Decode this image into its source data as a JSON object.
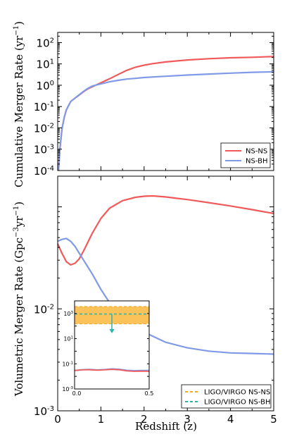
{
  "chart_data": [
    {
      "type": "line",
      "panel": "top",
      "ylabel": "Cumulative Merger Rate (yr",
      "ylabel_sup": "−1",
      "ylabel_end": ")",
      "yscale": "log",
      "ylim": [
        0.0001,
        300
      ],
      "xlim": [
        0,
        5
      ],
      "grid": false,
      "legend_placement": "bottom-right",
      "y_ticks": [
        {
          "v": 0.0001,
          "base": "10",
          "exp": "-4"
        },
        {
          "v": 0.001,
          "base": "10",
          "exp": "-3"
        },
        {
          "v": 0.01,
          "base": "10",
          "exp": "-2"
        },
        {
          "v": 0.1,
          "base": "10",
          "exp": "-1"
        },
        {
          "v": 1,
          "base": "10",
          "exp": "0"
        },
        {
          "v": 10,
          "base": "10",
          "exp": "1"
        },
        {
          "v": 100,
          "base": "10",
          "exp": "2"
        }
      ],
      "series": [
        {
          "name": "NS-NS",
          "color": "#f05a5a",
          "points": [
            [
              0.02,
              0.0001
            ],
            [
              0.05,
              0.001
            ],
            [
              0.1,
              0.009
            ],
            [
              0.15,
              0.03
            ],
            [
              0.2,
              0.07
            ],
            [
              0.3,
              0.17
            ],
            [
              0.4,
              0.25
            ],
            [
              0.5,
              0.35
            ],
            [
              0.6,
              0.5
            ],
            [
              0.7,
              0.68
            ],
            [
              0.8,
              0.85
            ],
            [
              1.0,
              1.3
            ],
            [
              1.2,
              2.0
            ],
            [
              1.4,
              3.2
            ],
            [
              1.6,
              5.0
            ],
            [
              1.8,
              7.0
            ],
            [
              2.0,
              8.7
            ],
            [
              2.2,
              10.3
            ],
            [
              2.5,
              12.4
            ],
            [
              3.0,
              15.3
            ],
            [
              3.5,
              17.6
            ],
            [
              4.0,
              19.4
            ],
            [
              4.5,
              20.5
            ],
            [
              5.0,
              22.3
            ]
          ]
        },
        {
          "name": "NS-BH",
          "color": "#7f9ae6",
          "points": [
            [
              0.02,
              0.0001
            ],
            [
              0.05,
              0.001
            ],
            [
              0.1,
              0.009
            ],
            [
              0.15,
              0.03
            ],
            [
              0.2,
              0.07
            ],
            [
              0.3,
              0.17
            ],
            [
              0.4,
              0.25
            ],
            [
              0.5,
              0.36
            ],
            [
              0.6,
              0.52
            ],
            [
              0.7,
              0.72
            ],
            [
              0.8,
              0.92
            ],
            [
              1.0,
              1.15
            ],
            [
              1.2,
              1.45
            ],
            [
              1.4,
              1.7
            ],
            [
              1.6,
              1.95
            ],
            [
              1.8,
              2.1
            ],
            [
              2.0,
              2.3
            ],
            [
              2.5,
              2.65
            ],
            [
              3.0,
              3.0
            ],
            [
              3.5,
              3.35
            ],
            [
              4.0,
              3.7
            ],
            [
              4.5,
              4.05
            ],
            [
              5.0,
              4.25
            ]
          ]
        }
      ]
    },
    {
      "type": "line",
      "panel": "bottom",
      "xlabel": "Redshift (z)",
      "ylabel": "Volumetric Merger Rate (Gpc",
      "ylabel_sup1": "−3",
      "ylabel_mid": "yr",
      "ylabel_sup2": "−1",
      "ylabel_end": ")",
      "yscale": "log",
      "ylim": [
        0.001,
        0.2
      ],
      "xlim": [
        0,
        5
      ],
      "grid": false,
      "legend_placement": "bottom-right",
      "x_ticks": [
        "0",
        "1",
        "2",
        "3",
        "4",
        "5"
      ],
      "y_ticks": [
        {
          "v": 0.001,
          "base": "10",
          "exp": "-3"
        },
        {
          "v": 0.01,
          "base": "10",
          "exp": "-2"
        }
      ],
      "series": [
        {
          "name": "NS-NS",
          "color": "#f05a5a",
          "points": [
            [
              0.0,
              0.0435
            ],
            [
              0.1,
              0.035
            ],
            [
              0.2,
              0.029
            ],
            [
              0.3,
              0.027
            ],
            [
              0.4,
              0.028
            ],
            [
              0.5,
              0.031
            ],
            [
              0.6,
              0.037
            ],
            [
              0.8,
              0.055
            ],
            [
              1.0,
              0.077
            ],
            [
              1.2,
              0.097
            ],
            [
              1.5,
              0.115
            ],
            [
              1.8,
              0.124
            ],
            [
              2.0,
              0.127
            ],
            [
              2.2,
              0.128
            ],
            [
              2.5,
              0.125
            ],
            [
              3.0,
              0.118
            ],
            [
              3.5,
              0.11
            ],
            [
              4.0,
              0.102
            ],
            [
              4.5,
              0.094
            ],
            [
              5.0,
              0.086
            ]
          ]
        },
        {
          "name": "NS-BH",
          "color": "#7f9ae6",
          "points": [
            [
              0.0,
              0.046
            ],
            [
              0.1,
              0.048
            ],
            [
              0.2,
              0.049
            ],
            [
              0.3,
              0.046
            ],
            [
              0.4,
              0.041
            ],
            [
              0.5,
              0.035
            ],
            [
              0.6,
              0.03
            ],
            [
              0.8,
              0.022
            ],
            [
              1.0,
              0.0155
            ],
            [
              1.2,
              0.0115
            ],
            [
              1.5,
              0.0085
            ],
            [
              1.8,
              0.0067
            ],
            [
              2.0,
              0.0059
            ],
            [
              2.5,
              0.0047
            ],
            [
              3.0,
              0.00415
            ],
            [
              3.5,
              0.00385
            ],
            [
              4.0,
              0.0037
            ],
            [
              4.5,
              0.00365
            ],
            [
              5.0,
              0.0036
            ]
          ]
        }
      ],
      "legend": [
        {
          "label": "LIGO/VIRGO NS-NS",
          "color": "#f5a623",
          "style": "dashed"
        },
        {
          "label": "LIGO/VIRGO NS-BH",
          "color": "#2ab5ae",
          "style": "dashed"
        }
      ]
    },
    {
      "type": "line",
      "panel": "inset",
      "yscale": "log",
      "ylim": [
        0.001,
        10000
      ],
      "xlim": [
        0,
        0.5
      ],
      "x_ticks": [
        "0.0",
        "0.5"
      ],
      "y_ticks": [
        {
          "v": 1000,
          "base": "10",
          "exp": "3"
        },
        {
          "v": 10,
          "base": "10",
          "exp": "1"
        },
        {
          "v": 0.1,
          "base": "10",
          "exp": "-1"
        },
        {
          "v": 0.001,
          "base": "10",
          "exp": "-3"
        }
      ],
      "bands": [
        {
          "name": "LIGO/VIRGO NS-NS",
          "color": "#f5a623",
          "fill": "#fbc25a",
          "low": 150,
          "high": 3500
        }
      ],
      "hlines": [
        {
          "name": "LIGO/VIRGO NS-BH",
          "color": "#2ab5ae",
          "y": 900
        }
      ],
      "arrow": {
        "x": 0.25,
        "from": 900,
        "to": 30,
        "color": "#2ab5ae"
      },
      "series": [
        {
          "name": "NS-BH",
          "color": "#7f9ae6",
          "points": [
            [
              0.0,
              0.03
            ],
            [
              0.05,
              0.034
            ],
            [
              0.1,
              0.036
            ],
            [
              0.15,
              0.033
            ],
            [
              0.2,
              0.035
            ],
            [
              0.25,
              0.04
            ],
            [
              0.3,
              0.037
            ],
            [
              0.35,
              0.031
            ],
            [
              0.4,
              0.029
            ],
            [
              0.45,
              0.03
            ],
            [
              0.5,
              0.03
            ]
          ]
        },
        {
          "name": "NS-NS",
          "color": "#f05a5a",
          "points": [
            [
              0.0,
              0.029
            ],
            [
              0.05,
              0.033
            ],
            [
              0.1,
              0.034
            ],
            [
              0.15,
              0.031
            ],
            [
              0.2,
              0.033
            ],
            [
              0.25,
              0.036
            ],
            [
              0.3,
              0.034
            ],
            [
              0.35,
              0.027
            ],
            [
              0.4,
              0.025
            ],
            [
              0.45,
              0.026
            ],
            [
              0.5,
              0.025
            ]
          ]
        }
      ]
    }
  ]
}
